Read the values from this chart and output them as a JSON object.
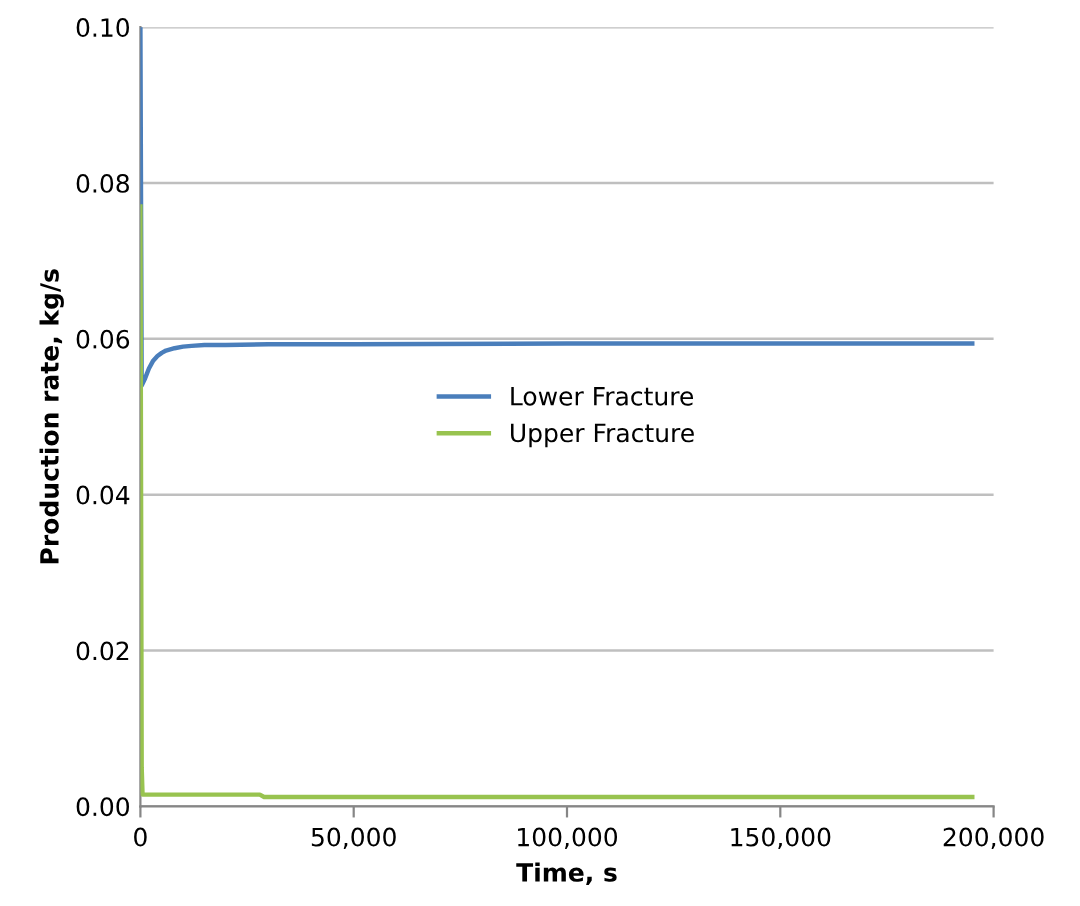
{
  "chart_data": {
    "type": "line",
    "xlabel": "Time, s",
    "ylabel": "Production rate, kg/s",
    "xlim": [
      0,
      200000
    ],
    "xticks": [
      {
        "value": 0,
        "label": "0"
      },
      {
        "value": 50000,
        "label": "50,000"
      },
      {
        "value": 100000,
        "label": "100,000"
      },
      {
        "value": 150000,
        "label": "150,000"
      },
      {
        "value": 200000,
        "label": "200,000"
      }
    ],
    "ylim": [
      0,
      0.1
    ],
    "yticks": [
      {
        "value": 0,
        "label": "0.00"
      },
      {
        "value": 0.02,
        "label": "0.02"
      },
      {
        "value": 0.04,
        "label": "0.04"
      },
      {
        "value": 0.06,
        "label": "0.06"
      },
      {
        "value": 0.08,
        "label": "0.08"
      },
      {
        "value": 0.1,
        "label": "0.10"
      }
    ],
    "grid": "y",
    "legend": "center",
    "marker": "none",
    "line_style": "solid",
    "series": [
      {
        "name": "Lower Fracture",
        "color": "#4a7ebb",
        "x": [
          0,
          300,
          1000,
          2000,
          3000,
          4000,
          5000,
          6000,
          8000,
          10000,
          12000,
          15000,
          20000,
          30000,
          50000,
          100000,
          150000,
          195000
        ],
        "values": [
          0.1,
          0.054,
          0.0548,
          0.0562,
          0.0572,
          0.0578,
          0.0582,
          0.0585,
          0.0588,
          0.059,
          0.0591,
          0.0592,
          0.0592,
          0.0593,
          0.0593,
          0.0594,
          0.0594,
          0.0594
        ]
      },
      {
        "name": "Upper Fracture",
        "color": "#98c34f",
        "x": [
          0,
          300,
          500,
          700,
          1000,
          28000,
          29000,
          50000,
          100000,
          150000,
          195000
        ],
        "values": [
          0.077,
          0.005,
          0.0015,
          0.0015,
          0.0015,
          0.0015,
          0.0012,
          0.0012,
          0.0012,
          0.0012,
          0.0012
        ]
      }
    ]
  }
}
